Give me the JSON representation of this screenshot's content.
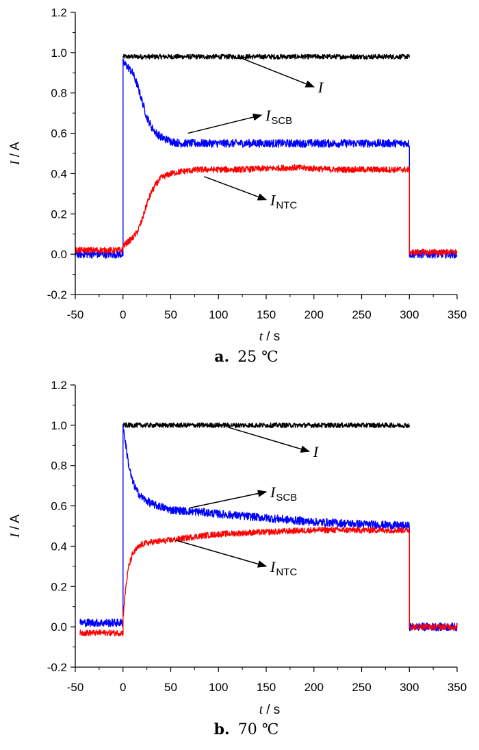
{
  "chart_data": [
    {
      "type": "line",
      "caption_letter": "a.",
      "caption_text": "25 ℃",
      "xlabel_var": "t",
      "xlabel_unit": " / s",
      "ylabel_var": "I",
      "ylabel_unit": " / A",
      "xlim": [
        -50,
        350
      ],
      "ylim": [
        -0.2,
        1.2
      ],
      "xticks": [
        -50,
        0,
        50,
        100,
        150,
        200,
        250,
        300,
        350
      ],
      "yticks": [
        -0.2,
        0.0,
        0.2,
        0.4,
        0.6,
        0.8,
        1.0,
        1.2
      ],
      "grid": false,
      "legend": "none",
      "series": [
        {
          "color": "#000000",
          "noise": 0.012,
          "points": [
            [
              -50,
              null
            ],
            [
              0,
              null
            ],
            [
              0,
              0.98
            ],
            [
              300,
              0.98
            ],
            [
              300,
              null
            ]
          ]
        },
        {
          "color": "#0000ff",
          "noise": 0.02,
          "points": [
            [
              -50,
              0.0
            ],
            [
              0,
              0.0
            ],
            [
              0,
              0.95
            ],
            [
              5,
              0.93
            ],
            [
              10,
              0.9
            ],
            [
              15,
              0.84
            ],
            [
              20,
              0.76
            ],
            [
              25,
              0.68
            ],
            [
              30,
              0.63
            ],
            [
              35,
              0.6
            ],
            [
              40,
              0.58
            ],
            [
              50,
              0.56
            ],
            [
              60,
              0.55
            ],
            [
              80,
              0.55
            ],
            [
              100,
              0.55
            ],
            [
              150,
              0.55
            ],
            [
              200,
              0.55
            ],
            [
              250,
              0.55
            ],
            [
              300,
              0.55
            ],
            [
              300,
              0.0
            ],
            [
              350,
              0.0
            ]
          ]
        },
        {
          "color": "#ff0000",
          "noise": 0.015,
          "points": [
            [
              -50,
              0.02
            ],
            [
              0,
              0.02
            ],
            [
              0,
              0.04
            ],
            [
              5,
              0.06
            ],
            [
              10,
              0.08
            ],
            [
              15,
              0.11
            ],
            [
              20,
              0.17
            ],
            [
              25,
              0.25
            ],
            [
              30,
              0.31
            ],
            [
              35,
              0.35
            ],
            [
              40,
              0.38
            ],
            [
              50,
              0.4
            ],
            [
              60,
              0.41
            ],
            [
              80,
              0.42
            ],
            [
              120,
              0.42
            ],
            [
              180,
              0.43
            ],
            [
              220,
              0.42
            ],
            [
              300,
              0.42
            ],
            [
              300,
              0.01
            ],
            [
              350,
              0.01
            ]
          ]
        }
      ],
      "annotations": [
        {
          "main": "I",
          "sub": "",
          "from": [
            120,
            0.98
          ],
          "to": [
            200,
            0.83
          ]
        },
        {
          "main": "I",
          "sub": "SCB",
          "from": [
            68,
            0.6
          ],
          "to": [
            145,
            0.69
          ]
        },
        {
          "main": "I",
          "sub": "NTC",
          "from": [
            85,
            0.385
          ],
          "to": [
            150,
            0.27
          ]
        }
      ]
    },
    {
      "type": "line",
      "caption_letter": "b.",
      "caption_text": "70 ℃",
      "xlabel_var": "t",
      "xlabel_unit": " / s",
      "ylabel_var": "I",
      "ylabel_unit": " / A",
      "xlim": [
        -50,
        350
      ],
      "ylim": [
        -0.2,
        1.2
      ],
      "xticks": [
        -50,
        0,
        50,
        100,
        150,
        200,
        250,
        300,
        350
      ],
      "yticks": [
        -0.2,
        0.0,
        0.2,
        0.4,
        0.6,
        0.8,
        1.0,
        1.2
      ],
      "grid": false,
      "legend": "none",
      "series": [
        {
          "color": "#000000",
          "noise": 0.012,
          "points": [
            [
              -50,
              null
            ],
            [
              0,
              null
            ],
            [
              0,
              1.0
            ],
            [
              300,
              1.0
            ],
            [
              300,
              null
            ]
          ]
        },
        {
          "color": "#0000ff",
          "noise": 0.02,
          "points": [
            [
              -45,
              0.02
            ],
            [
              0,
              0.02
            ],
            [
              0,
              1.0
            ],
            [
              3,
              0.9
            ],
            [
              6,
              0.8
            ],
            [
              10,
              0.72
            ],
            [
              15,
              0.67
            ],
            [
              20,
              0.64
            ],
            [
              30,
              0.61
            ],
            [
              50,
              0.58
            ],
            [
              80,
              0.57
            ],
            [
              100,
              0.56
            ],
            [
              150,
              0.54
            ],
            [
              200,
              0.52
            ],
            [
              250,
              0.51
            ],
            [
              300,
              0.5
            ],
            [
              300,
              0.0
            ],
            [
              350,
              0.0
            ]
          ]
        },
        {
          "color": "#ff0000",
          "noise": 0.015,
          "points": [
            [
              -45,
              -0.03
            ],
            [
              0,
              -0.03
            ],
            [
              0,
              0.05
            ],
            [
              3,
              0.2
            ],
            [
              6,
              0.3
            ],
            [
              10,
              0.36
            ],
            [
              15,
              0.39
            ],
            [
              20,
              0.41
            ],
            [
              30,
              0.42
            ],
            [
              50,
              0.43
            ],
            [
              80,
              0.45
            ],
            [
              100,
              0.46
            ],
            [
              150,
              0.47
            ],
            [
              200,
              0.48
            ],
            [
              250,
              0.48
            ],
            [
              300,
              0.48
            ],
            [
              300,
              0.0
            ],
            [
              350,
              0.0
            ]
          ]
        }
      ],
      "annotations": [
        {
          "main": "I",
          "sub": "",
          "from": [
            110,
            0.99
          ],
          "to": [
            195,
            0.87
          ]
        },
        {
          "main": "I",
          "sub": "SCB",
          "from": [
            70,
            0.59
          ],
          "to": [
            150,
            0.67
          ]
        },
        {
          "main": "I",
          "sub": "NTC",
          "from": [
            55,
            0.43
          ],
          "to": [
            150,
            0.3
          ]
        }
      ]
    }
  ]
}
